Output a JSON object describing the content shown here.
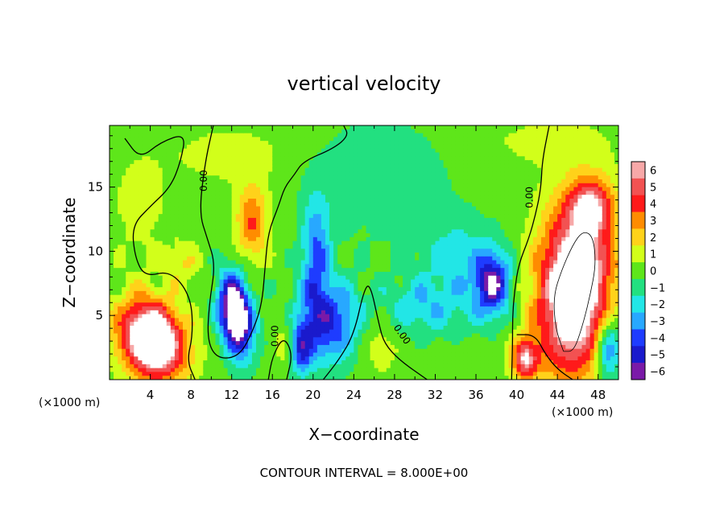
{
  "chart_data": {
    "type": "heatmap",
    "title": "vertical velocity",
    "xlabel": "X−coordinate",
    "ylabel": "Z−coordinate",
    "x_unit_left": "(×1000 m)",
    "x_unit_right": "(×1000 m)",
    "footer": "CONTOUR INTERVAL = 8.000E+00",
    "xlim": [
      0,
      50
    ],
    "ylim": [
      0,
      19.8
    ],
    "x_ticks": [
      4,
      8,
      12,
      16,
      20,
      24,
      28,
      32,
      36,
      40,
      44,
      48
    ],
    "y_ticks": [
      5,
      10,
      15
    ],
    "colorbar": {
      "levels": [
        6,
        5,
        4,
        3,
        2,
        1,
        0,
        -1,
        -2,
        -3,
        -4,
        -5,
        -6
      ],
      "labels": [
        "6",
        "5",
        "4",
        "3",
        "2",
        "1",
        "0",
        "−1",
        "−2",
        "−3",
        "−4",
        "−5",
        "−6"
      ],
      "colors": [
        "#f7a8a8",
        "#f25252",
        "#ff1a1a",
        "#ff8c00",
        "#ffd21a",
        "#d2ff1a",
        "#5ee61a",
        "#22e080",
        "#22e6e6",
        "#28a8ff",
        "#1e3cff",
        "#1a1acc",
        "#7a1aa8"
      ],
      "background": "#5ee61a"
    },
    "contour_label": "0.00",
    "features": [
      {
        "x": 4.2,
        "z": 3.1,
        "sx": 2.3,
        "sz": 1.9,
        "w": 10.0,
        "rot": -40
      },
      {
        "x": 40.8,
        "z": 1.6,
        "sx": 0.9,
        "sz": 1.1,
        "w": 5.5,
        "rot": 0
      },
      {
        "x": 45.7,
        "z": 7.0,
        "sx": 2.5,
        "sz": 4.5,
        "w": 9.5,
        "rot": -5
      },
      {
        "x": 47.3,
        "z": 13.5,
        "sx": 1.5,
        "sz": 1.5,
        "w": 4.5,
        "rot": 0
      },
      {
        "x": 14.0,
        "z": 12.3,
        "sx": 1.1,
        "sz": 2.1,
        "w": 3.6,
        "rot": 0
      },
      {
        "x": 7.2,
        "z": 9.0,
        "sx": 1.2,
        "sz": 1.2,
        "w": 1.5,
        "rot": 0
      },
      {
        "x": 26.3,
        "z": 3.6,
        "sx": 1.6,
        "sz": 2.1,
        "w": 1.6,
        "rot": 0
      },
      {
        "x": 17.3,
        "z": 3.0,
        "sx": 0.8,
        "sz": 1.6,
        "w": 1.7,
        "rot": 0
      },
      {
        "x": 12.4,
        "z": 5.0,
        "sx": 1.1,
        "sz": 2.2,
        "w": -9.0,
        "rot": 10
      },
      {
        "x": 20.3,
        "z": 9.5,
        "sx": 1.0,
        "sz": 3.2,
        "w": -3.7,
        "rot": 0
      },
      {
        "x": 21.5,
        "z": 4.3,
        "sx": 2.4,
        "sz": 2.2,
        "w": -4.3,
        "rot": 0
      },
      {
        "x": 18.8,
        "z": 2.3,
        "sx": 0.8,
        "sz": 1.4,
        "w": -3.8,
        "rot": 0
      },
      {
        "x": 30.5,
        "z": 5.6,
        "sx": 3.8,
        "sz": 1.6,
        "w": -2.3,
        "rot": 0
      },
      {
        "x": 34.0,
        "z": 9.6,
        "sx": 2.6,
        "sz": 2.2,
        "w": -1.8,
        "rot": 0
      },
      {
        "x": 37.6,
        "z": 7.5,
        "sx": 1.3,
        "sz": 1.8,
        "w": -5.6,
        "rot": 0
      },
      {
        "x": 49.0,
        "z": 2.5,
        "sx": 0.9,
        "sz": 1.9,
        "w": -4.5,
        "rot": 0
      },
      {
        "x": 26.5,
        "z": 15.5,
        "sx": 5.0,
        "sz": 3.5,
        "w": -1.2,
        "rot": 0
      },
      {
        "x": 12.0,
        "z": 17.5,
        "sx": 4.0,
        "sz": 1.5,
        "w": 1.0,
        "rot": 0
      },
      {
        "x": 43.0,
        "z": 18.5,
        "sx": 4.0,
        "sz": 1.2,
        "w": 0.9,
        "rot": 0
      },
      {
        "x": 3.0,
        "z": 13.5,
        "sx": 2.0,
        "sz": 3.0,
        "w": 0.9,
        "rot": 0
      }
    ],
    "zero_contours": [
      [
        [
          1.5,
          18.8
        ],
        [
          3.0,
          17.2
        ],
        [
          5.0,
          18.5
        ],
        [
          7.5,
          19.2
        ],
        [
          7.0,
          17.0
        ],
        [
          6.0,
          15.0
        ],
        [
          4.0,
          13.5
        ],
        [
          2.2,
          12.0
        ],
        [
          2.5,
          9.5
        ],
        [
          3.5,
          8.0
        ],
        [
          6.0,
          8.5
        ],
        [
          8.0,
          6.5
        ],
        [
          8.2,
          3.5
        ],
        [
          7.6,
          1.5
        ],
        [
          8.4,
          0
        ]
      ],
      [
        [
          10.2,
          19.8
        ],
        [
          9.4,
          17.0
        ],
        [
          8.8,
          13.0
        ],
        [
          9.6,
          11.0
        ],
        [
          10.4,
          9.0
        ],
        [
          9.8,
          6.0
        ],
        [
          9.6,
          3.0
        ],
        [
          10.6,
          1.6
        ],
        [
          12.8,
          1.8
        ],
        [
          14.2,
          4.0
        ],
        [
          15.0,
          6.0
        ],
        [
          15.3,
          9.0
        ],
        [
          15.6,
          11.5
        ],
        [
          16.6,
          13.5
        ],
        [
          17.2,
          15.0
        ],
        [
          18.2,
          16.0
        ],
        [
          19.0,
          17.0
        ],
        [
          22.0,
          18.0
        ],
        [
          23.5,
          19.0
        ],
        [
          23.0,
          19.8
        ]
      ],
      [
        [
          15.6,
          0
        ],
        [
          16.0,
          1.8
        ],
        [
          17.1,
          3.4
        ],
        [
          18.0,
          2.0
        ],
        [
          17.4,
          0
        ]
      ],
      [
        [
          21.0,
          0
        ],
        [
          22.5,
          1.5
        ],
        [
          24.0,
          3.5
        ],
        [
          25.0,
          7.0
        ],
        [
          25.6,
          7.5
        ],
        [
          26.5,
          4.2
        ],
        [
          27.0,
          2.8
        ],
        [
          28.5,
          1.5
        ],
        [
          31.2,
          0
        ]
      ],
      [
        [
          43.2,
          19.8
        ],
        [
          42.5,
          17.0
        ],
        [
          42.4,
          15.0
        ],
        [
          41.9,
          13.0
        ],
        [
          41.2,
          11.0
        ],
        [
          40.2,
          9.0
        ],
        [
          39.8,
          7.0
        ],
        [
          39.6,
          5.0
        ],
        [
          39.6,
          3.0
        ],
        [
          39.5,
          0
        ]
      ],
      [
        [
          40.0,
          3.5
        ],
        [
          41.8,
          3.5
        ],
        [
          42.8,
          2.0
        ],
        [
          44.0,
          0.8
        ],
        [
          45.5,
          0
        ]
      ]
    ],
    "inner_contours": [
      [
        [
          44.6,
          2.2
        ],
        [
          43.8,
          4.0
        ],
        [
          43.6,
          6.5
        ],
        [
          44.4,
          8.5
        ],
        [
          45.5,
          10.5
        ],
        [
          46.5,
          11.6
        ],
        [
          47.5,
          11.2
        ],
        [
          47.8,
          9.0
        ],
        [
          47.2,
          6.5
        ],
        [
          46.4,
          4.0
        ],
        [
          45.6,
          2.2
        ],
        [
          44.6,
          2.2
        ]
      ]
    ],
    "label_positions": [
      {
        "x": 9.3,
        "z": 15.5,
        "rot": -90
      },
      {
        "x": 16.3,
        "z": 3.4,
        "rot": -90
      },
      {
        "x": 28.7,
        "z": 3.5,
        "rot": 55
      },
      {
        "x": 41.3,
        "z": 14.2,
        "rot": -90
      }
    ]
  }
}
